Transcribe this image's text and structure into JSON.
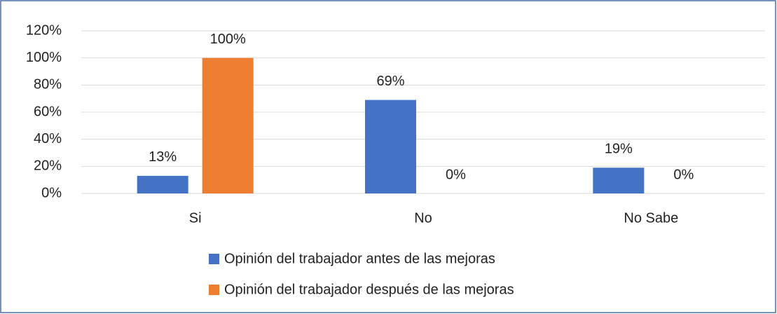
{
  "chart_data": {
    "type": "bar",
    "categories": [
      "Si",
      "No",
      "No Sabe"
    ],
    "series": [
      {
        "name": "Opinión del trabajador antes de las mejoras",
        "color": "#4472c4",
        "values": [
          13,
          69,
          19
        ],
        "value_labels": [
          "13%",
          "69%",
          "19%"
        ]
      },
      {
        "name": "Opinión del trabajador después de las mejoras",
        "color": "#ed7d31",
        "values": [
          100,
          0,
          0
        ],
        "value_labels": [
          "100%",
          "0%",
          "0%"
        ]
      }
    ],
    "ylim": [
      0,
      120
    ],
    "yticks": [
      {
        "value": 0,
        "label": "0%"
      },
      {
        "value": 20,
        "label": "20%"
      },
      {
        "value": 40,
        "label": "40%"
      },
      {
        "value": 60,
        "label": "60%"
      },
      {
        "value": 80,
        "label": "80%"
      },
      {
        "value": 100,
        "label": "100%"
      },
      {
        "value": 120,
        "label": "120%"
      }
    ],
    "grid": true,
    "legend": "bottom"
  }
}
